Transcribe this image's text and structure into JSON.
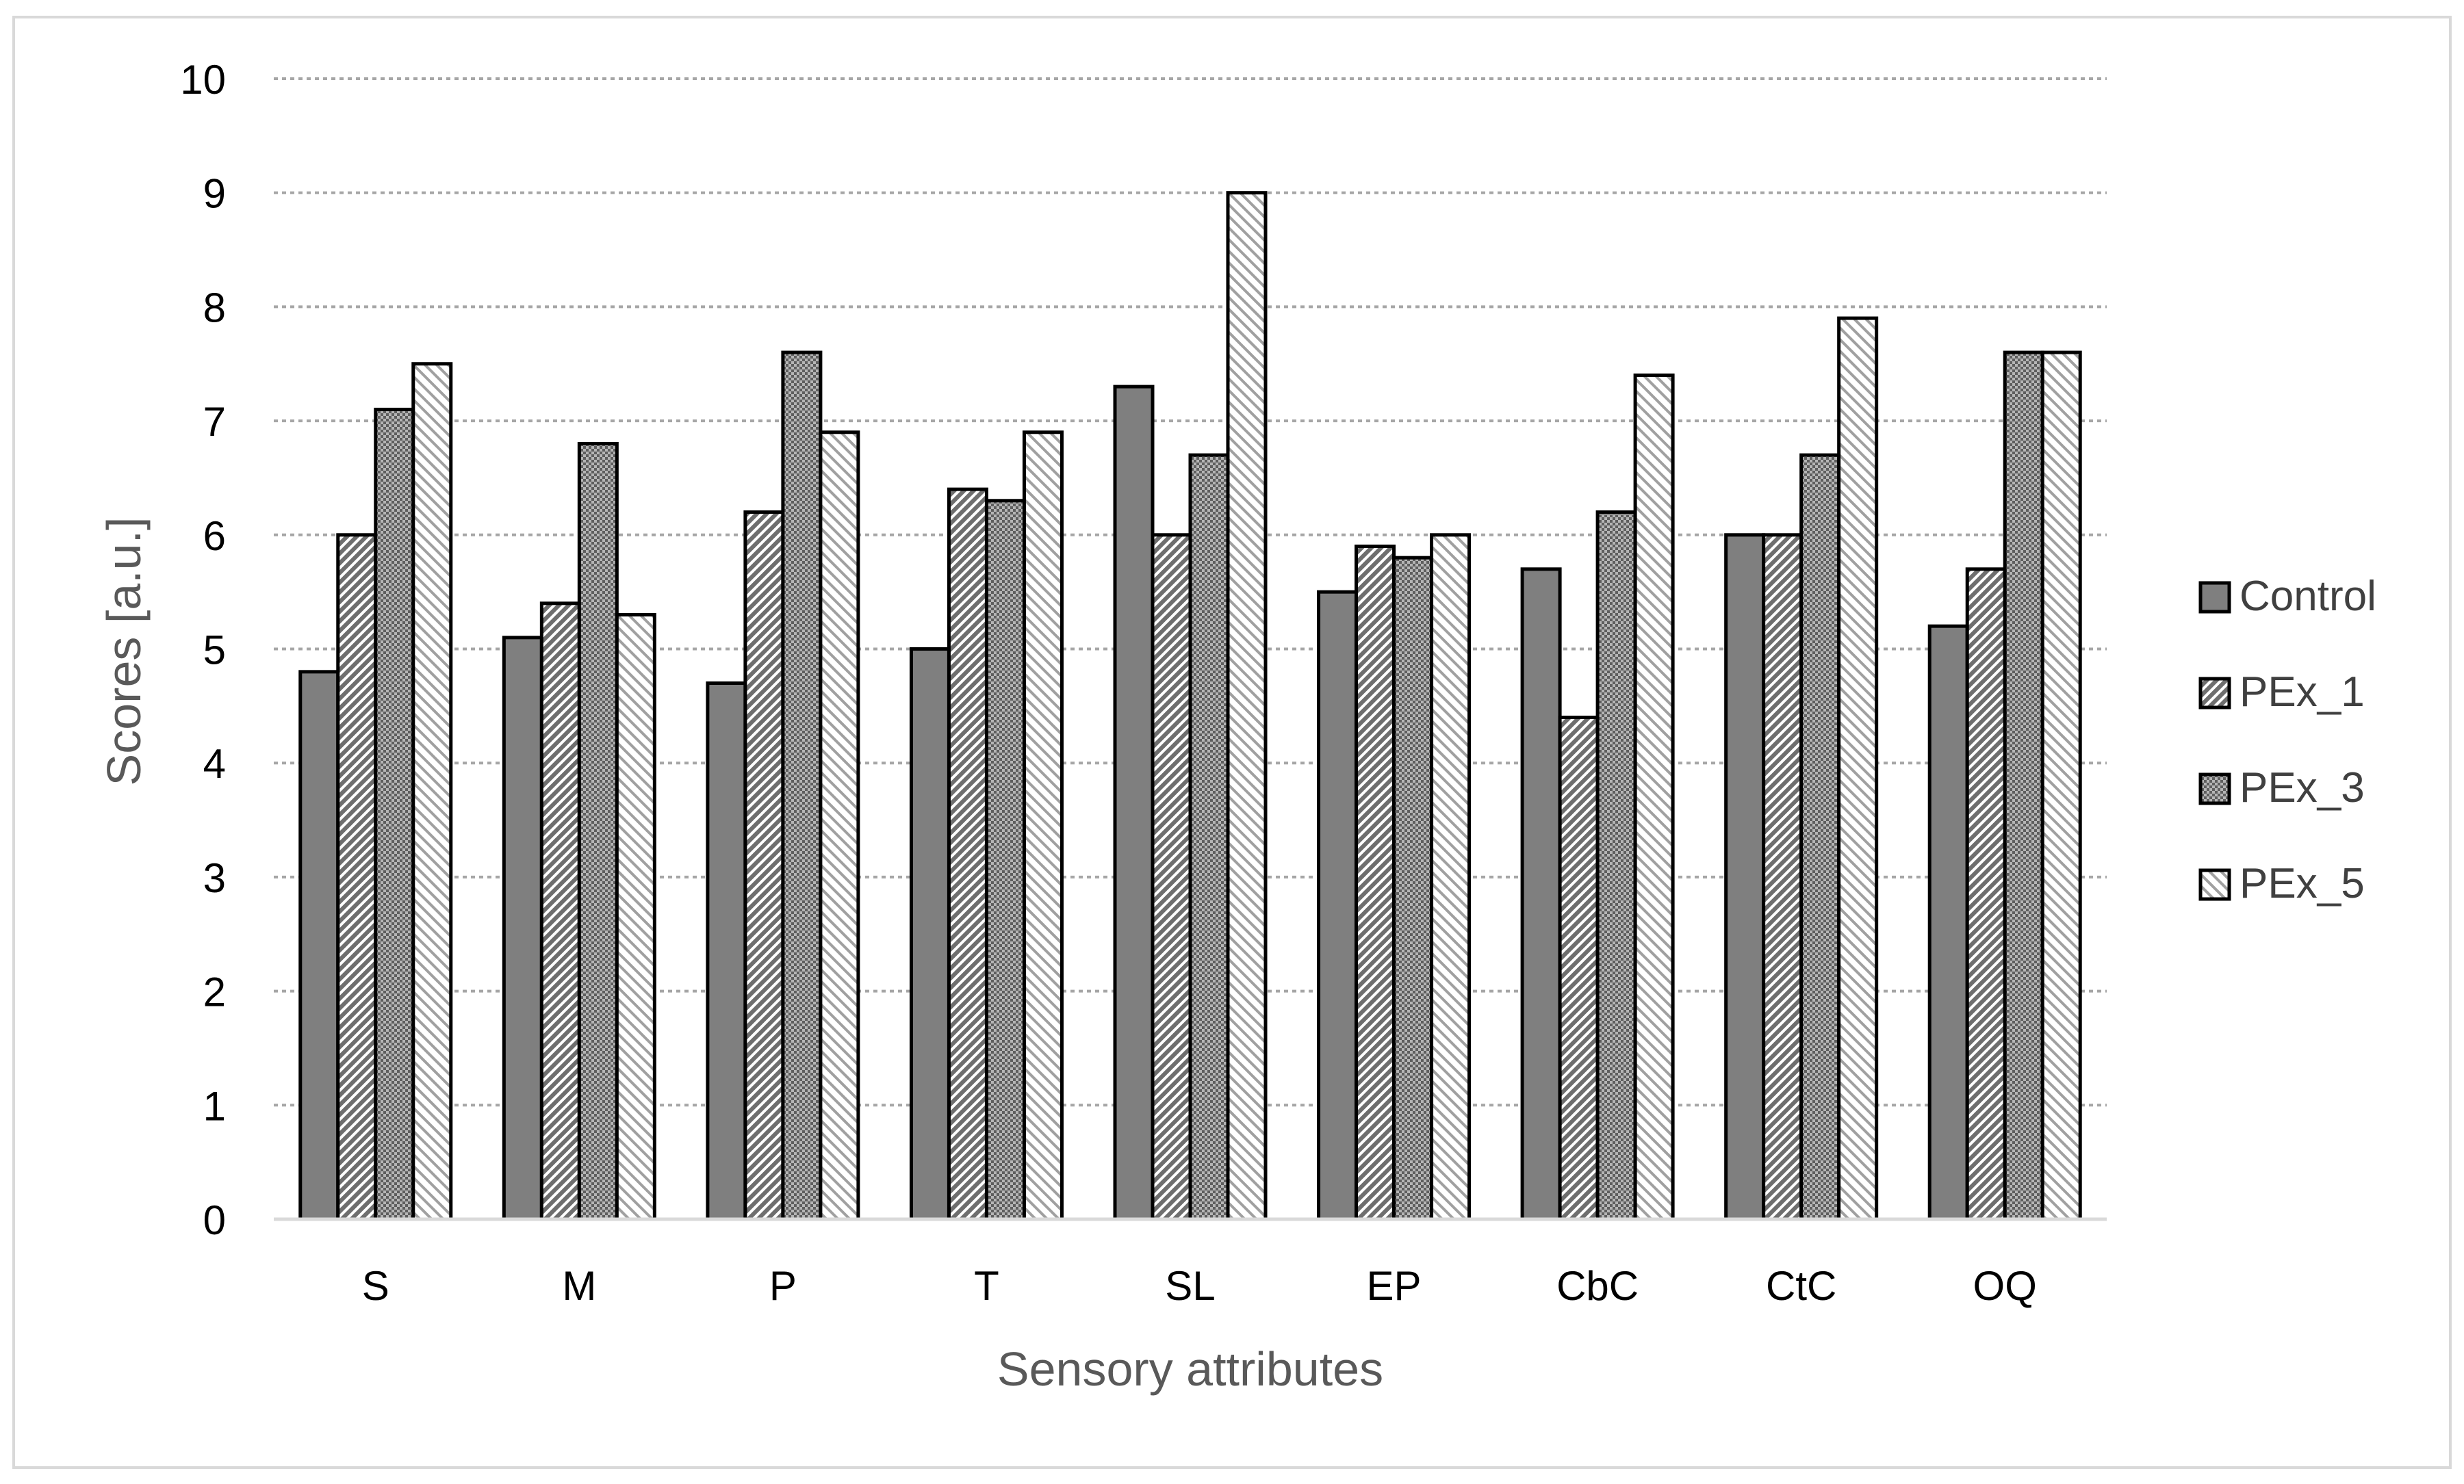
{
  "chart_data": {
    "type": "bar",
    "xlabel": "Sensory attributes",
    "ylabel": "Scores [a.u.]",
    "ylim": [
      0,
      10
    ],
    "yticks": [
      "0",
      "1",
      "2",
      "3",
      "4",
      "5",
      "6",
      "7",
      "8",
      "9",
      "10"
    ],
    "grid": true,
    "legend_position": "right",
    "categories": [
      "S",
      "M",
      "P",
      "T",
      "SL",
      "EP",
      "CbC",
      "CtC",
      "OQ"
    ],
    "series": [
      {
        "name": "Control",
        "values": [
          4.8,
          5.1,
          4.7,
          5.0,
          7.3,
          5.5,
          5.7,
          6.0,
          5.2
        ],
        "pattern": "solid",
        "color": "#7f7f7f"
      },
      {
        "name": "PEx_1",
        "values": [
          6.0,
          5.4,
          6.2,
          6.4,
          6.0,
          5.9,
          4.4,
          6.0,
          5.7
        ],
        "pattern": "diagonal-dense",
        "color": "#6e6e6e"
      },
      {
        "name": "PEx_3",
        "values": [
          7.1,
          6.8,
          7.6,
          6.3,
          6.7,
          5.8,
          6.2,
          6.7,
          7.6
        ],
        "pattern": "checker",
        "color": "#8a8a8a"
      },
      {
        "name": "PEx_5",
        "values": [
          7.5,
          5.3,
          6.9,
          6.9,
          9.0,
          6.0,
          7.4,
          7.9,
          7.6
        ],
        "pattern": "diagonal-light",
        "color": "#b0b0b0"
      }
    ]
  }
}
